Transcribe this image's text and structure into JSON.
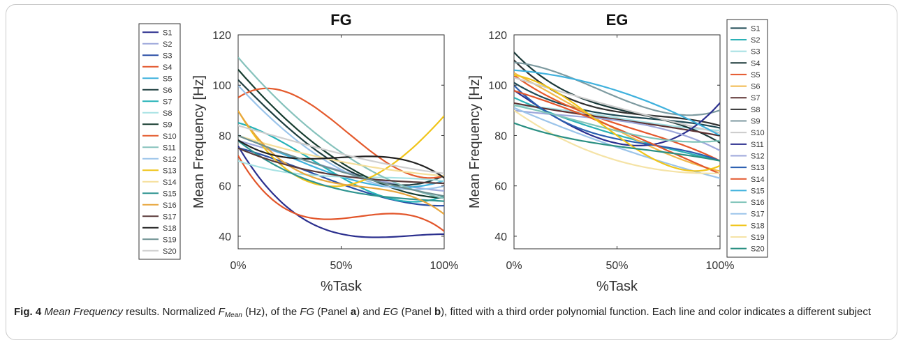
{
  "caption": {
    "fig_label": "Fig. 4",
    "t1": "Mean Frequency",
    "t2": " results. Normalized ",
    "t3": "F",
    "t4": "Mean",
    "t5": " (Hz), of the ",
    "t6": "FG",
    "t7": " (Panel ",
    "t8": "a",
    "t9": ") and ",
    "t10": "EG",
    "t11": " (Panel ",
    "t12": "b",
    "t13": "), fitted with a third order polynomial function. Each line and color indicates a different subject"
  },
  "chart_data": [
    {
      "type": "line",
      "title": "FG",
      "xlabel": "%Task",
      "ylabel": "Mean Frequency [Hz]",
      "xlim": [
        0,
        100
      ],
      "ylim": [
        35,
        120
      ],
      "xticks": [
        0,
        50,
        100
      ],
      "xtick_labels": [
        "0%",
        "50%",
        "100%"
      ],
      "yticks": [
        40,
        60,
        80,
        100,
        120
      ],
      "grid": false,
      "legend_position": "left",
      "x": [
        0,
        25,
        50,
        75,
        100
      ],
      "series": [
        {
          "name": "S1",
          "color": "#2b2f8e",
          "values": [
            76,
            50,
            42,
            39,
            41
          ]
        },
        {
          "name": "S2",
          "color": "#9da7db",
          "values": [
            78,
            72,
            66,
            61,
            58
          ]
        },
        {
          "name": "S3",
          "color": "#2a4fa6",
          "values": [
            75,
            69,
            60,
            55,
            52
          ]
        },
        {
          "name": "S4",
          "color": "#e2552a",
          "values": [
            72,
            50,
            47,
            49,
            42
          ]
        },
        {
          "name": "S5",
          "color": "#3fb1dd",
          "values": [
            80,
            72,
            63,
            60,
            62
          ]
        },
        {
          "name": "S6",
          "color": "#1d3d3e",
          "values": [
            102,
            83,
            67,
            61,
            64
          ]
        },
        {
          "name": "S7",
          "color": "#25b3b8",
          "values": [
            85,
            76,
            63,
            55,
            56
          ]
        },
        {
          "name": "S8",
          "color": "#a7e2e4",
          "values": [
            70,
            65,
            64,
            63,
            62
          ]
        },
        {
          "name": "S9",
          "color": "#173d30",
          "values": [
            106,
            86,
            68,
            60,
            55
          ]
        },
        {
          "name": "S10",
          "color": "#e45a2c",
          "values": [
            95,
            97,
            83,
            68,
            64
          ]
        },
        {
          "name": "S11",
          "color": "#86c2bc",
          "values": [
            111,
            90,
            73,
            62,
            55
          ]
        },
        {
          "name": "S12",
          "color": "#9bc4ea",
          "values": [
            100,
            80,
            67,
            59,
            60
          ]
        },
        {
          "name": "S13",
          "color": "#f0c419",
          "values": [
            90,
            65,
            61,
            68,
            88
          ]
        },
        {
          "name": "S14",
          "color": "#f5df9a",
          "values": [
            80,
            74,
            70,
            66,
            64
          ]
        },
        {
          "name": "S15",
          "color": "#2e9490",
          "values": [
            78,
            65,
            59,
            55,
            54
          ]
        },
        {
          "name": "S16",
          "color": "#e8a63c",
          "values": [
            90,
            67,
            62,
            57,
            49
          ]
        },
        {
          "name": "S17",
          "color": "#5a3a3a",
          "values": [
            75,
            68,
            64,
            62,
            61
          ]
        },
        {
          "name": "S18",
          "color": "#222222",
          "values": [
            78,
            72,
            70,
            72,
            63
          ]
        },
        {
          "name": "S19",
          "color": "#6c8f90",
          "values": [
            80,
            72,
            66,
            60,
            56
          ]
        },
        {
          "name": "S20",
          "color": "#cfcfcf",
          "values": [
            84,
            78,
            73,
            68,
            65
          ]
        }
      ]
    },
    {
      "type": "line",
      "title": "EG",
      "xlabel": "%Task",
      "ylabel": "Mean Frequency [Hz]",
      "xlim": [
        0,
        100
      ],
      "ylim": [
        35,
        120
      ],
      "xticks": [
        0,
        50,
        100
      ],
      "xtick_labels": [
        "0%",
        "50%",
        "100%"
      ],
      "yticks": [
        40,
        60,
        80,
        100,
        120
      ],
      "grid": false,
      "legend_position": "right",
      "x": [
        0,
        25,
        50,
        75,
        100
      ],
      "series": [
        {
          "name": "S1",
          "color": "#1e4a55",
          "values": [
            101,
            92,
            88,
            86,
            83
          ]
        },
        {
          "name": "S2",
          "color": "#2bb1b6",
          "values": [
            95,
            87,
            80,
            75,
            70
          ]
        },
        {
          "name": "S3",
          "color": "#a5dfe3",
          "values": [
            92,
            90,
            87,
            84,
            82
          ]
        },
        {
          "name": "S4",
          "color": "#1a3838",
          "values": [
            113,
            98,
            90,
            86,
            77
          ]
        },
        {
          "name": "S5",
          "color": "#e4572b",
          "values": [
            104,
            92,
            85,
            78,
            70
          ]
        },
        {
          "name": "S6",
          "color": "#f0b84a",
          "values": [
            105,
            93,
            83,
            72,
            66
          ]
        },
        {
          "name": "S7",
          "color": "#5e3333",
          "values": [
            93,
            89,
            87,
            83,
            80
          ]
        },
        {
          "name": "S8",
          "color": "#303030",
          "values": [
            110,
            95,
            90,
            87,
            84
          ]
        },
        {
          "name": "S9",
          "color": "#7d9aa0",
          "values": [
            109,
            104,
            95,
            89,
            90
          ]
        },
        {
          "name": "S10",
          "color": "#cccccc",
          "values": [
            103,
            97,
            91,
            86,
            81
          ]
        },
        {
          "name": "S11",
          "color": "#2b2f8e",
          "values": [
            98,
            85,
            77,
            78,
            93
          ]
        },
        {
          "name": "S12",
          "color": "#9da7db",
          "values": [
            90,
            88,
            86,
            82,
            74
          ]
        },
        {
          "name": "S13",
          "color": "#2a5fb0",
          "values": [
            100,
            85,
            79,
            75,
            70
          ]
        },
        {
          "name": "S14",
          "color": "#e2552a",
          "values": [
            98,
            90,
            84,
            73,
            65
          ]
        },
        {
          "name": "S15",
          "color": "#3fb1dd",
          "values": [
            106,
            103,
            98,
            90,
            80
          ]
        },
        {
          "name": "S16",
          "color": "#7fc4b9",
          "values": [
            92,
            87,
            82,
            78,
            78
          ]
        },
        {
          "name": "S17",
          "color": "#9bc4ea",
          "values": [
            91,
            83,
            75,
            69,
            63
          ]
        },
        {
          "name": "S18",
          "color": "#f0c419",
          "values": [
            104,
            95,
            80,
            68,
            68
          ]
        },
        {
          "name": "S19",
          "color": "#f5e3a6",
          "values": [
            90,
            78,
            70,
            66,
            65
          ]
        },
        {
          "name": "S20",
          "color": "#2a8f82",
          "values": [
            85,
            79,
            76,
            73,
            70
          ]
        }
      ]
    }
  ]
}
